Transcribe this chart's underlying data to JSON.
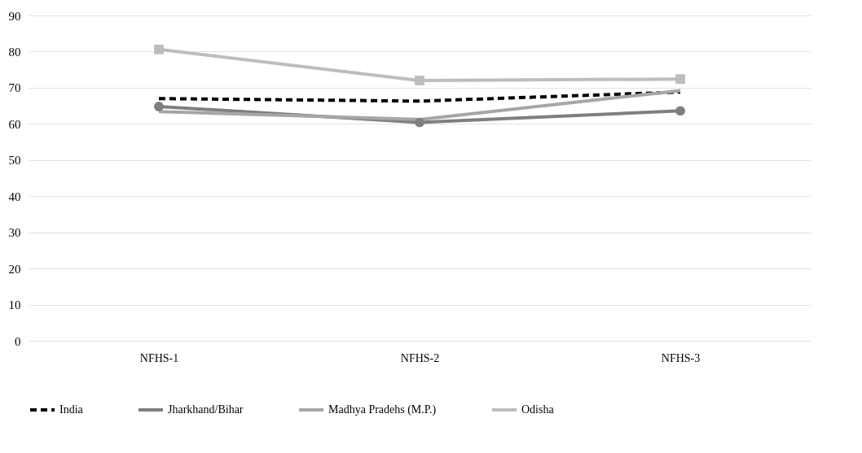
{
  "chart_data": {
    "type": "line",
    "categories": [
      "NFHS-1",
      "NFHS-2",
      "NFHS-3"
    ],
    "series": [
      {
        "name": "India",
        "color": "#000000",
        "line_style": "dashed",
        "marker": "none",
        "values": [
          67,
          66.3,
          68.8
        ]
      },
      {
        "name": "Jharkhand/Bihar",
        "color": "#7f7f7f",
        "line_style": "solid",
        "marker": "circle",
        "values": [
          64.8,
          60.4,
          63.6
        ]
      },
      {
        "name": "Madhya Pradehs (M.P.)",
        "color": "#a6a6a6",
        "line_style": "solid",
        "marker": "none",
        "values": [
          63.4,
          61.2,
          69.2
        ]
      },
      {
        "name": "Odisha",
        "color": "#bdbdbd",
        "line_style": "solid",
        "marker": "square",
        "values": [
          80.6,
          72,
          72.4
        ]
      }
    ],
    "ylim": [
      0,
      90
    ],
    "yticks": [
      0,
      10,
      20,
      30,
      40,
      50,
      60,
      70,
      80,
      90
    ],
    "grid": "y",
    "legend": "bottom"
  }
}
